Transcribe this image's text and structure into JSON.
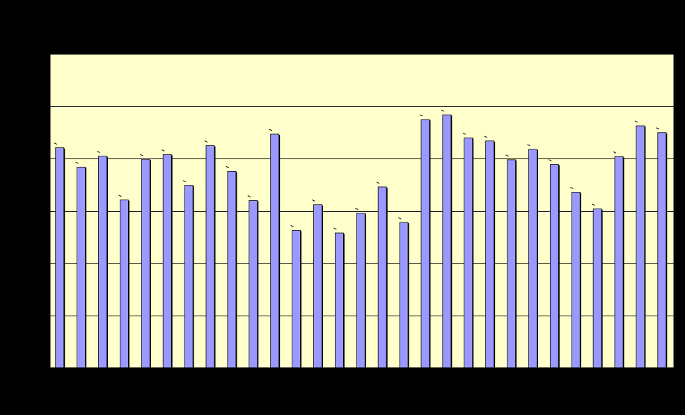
{
  "colors": {
    "background": "#000000",
    "plot_area": "#ffffcc",
    "bar_fill": "#9999ff",
    "bar_edge": "#000000",
    "gridline": "#000000"
  },
  "chart_data": {
    "type": "bar",
    "title": "",
    "xlabel": "",
    "ylabel": "",
    "ylim": [
      0,
      6
    ],
    "gridlines_y": [
      1,
      2,
      3,
      4,
      5
    ],
    "grid": true,
    "legend": "none",
    "values": [
      4.21,
      3.84,
      4.05,
      3.21,
      3.99,
      4.08,
      3.49,
      4.25,
      3.76,
      3.2,
      4.47,
      2.63,
      3.12,
      2.58,
      2.96,
      3.46,
      2.78,
      4.75,
      4.84,
      4.4,
      4.34,
      3.98,
      4.18,
      3.89,
      3.36,
      3.04,
      4.04,
      4.63,
      4.5
    ]
  }
}
